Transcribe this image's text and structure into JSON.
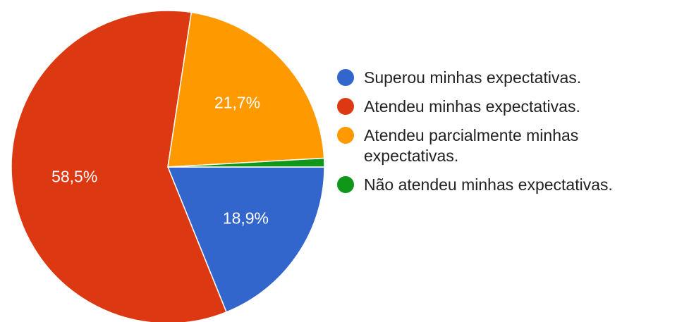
{
  "chart_data": {
    "type": "pie",
    "categories": [
      "Superou minhas expectativas.",
      "Atendeu minhas expectativas.",
      "Atendeu parcialmente minhas expectativas.",
      "Não atendeu minhas expectativas."
    ],
    "values": [
      18.9,
      58.5,
      21.7,
      0.9
    ],
    "value_labels": [
      "18,9%",
      "58,5%",
      "21,7%",
      null
    ],
    "colors": [
      "#3366cc",
      "#dc3912",
      "#ff9900",
      "#109618"
    ],
    "legend": "right"
  }
}
